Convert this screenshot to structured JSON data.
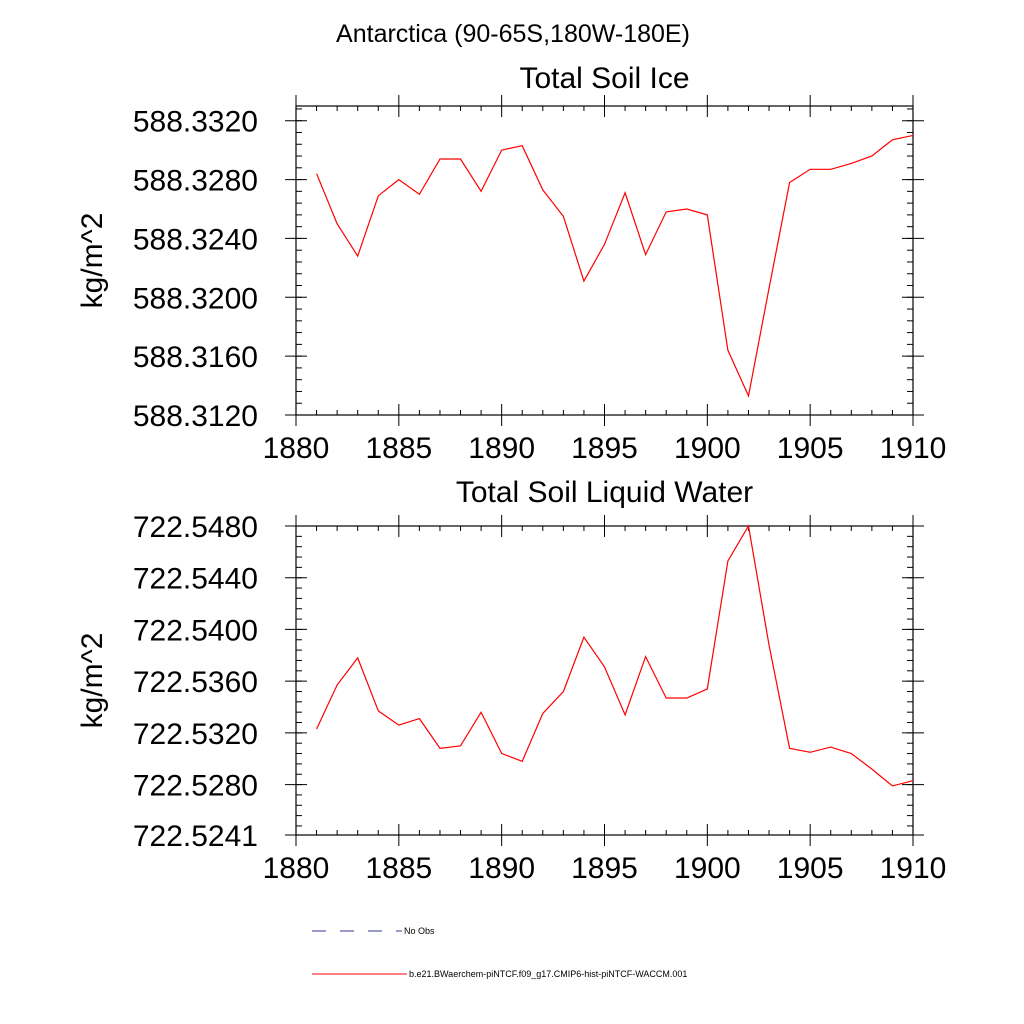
{
  "figure": {
    "title": "Antarctica (90-65S,180W-180E)"
  },
  "chart_data": [
    {
      "type": "line",
      "title": "Total Soil Ice",
      "xlabel": "",
      "ylabel": "kg/m^2",
      "xlim": [
        1880,
        1910
      ],
      "ylim": [
        588.312,
        588.333
      ],
      "xticks": [
        1880,
        1885,
        1890,
        1895,
        1900,
        1905,
        1910
      ],
      "xtick_labels": [
        "1880",
        "1885",
        "1890",
        "1895",
        "1900",
        "1905",
        "1910"
      ],
      "yticks": [
        588.312,
        588.316,
        588.32,
        588.324,
        588.328,
        588.332
      ],
      "ytick_labels": [
        "588.3120",
        "588.3160",
        "588.3200",
        "588.3240",
        "588.3280",
        "588.3320"
      ],
      "grid": false,
      "series": [
        {
          "name": "b.e21.BWaerchem-piNTCF.f09_g17.CMIP6-hist-piNTCF-WACCM.001",
          "color": "#ff0000",
          "x": [
            1881,
            1882,
            1883,
            1884,
            1885,
            1886,
            1887,
            1888,
            1889,
            1890,
            1891,
            1892,
            1893,
            1894,
            1895,
            1896,
            1897,
            1898,
            1899,
            1900,
            1901,
            1902,
            1903,
            1904,
            1905,
            1906,
            1907,
            1908,
            1909,
            1910
          ],
          "y": [
            588.3284,
            588.325,
            588.3228,
            588.3269,
            588.328,
            588.327,
            588.3294,
            588.3294,
            588.3272,
            588.33,
            588.3303,
            588.3273,
            588.3255,
            588.3211,
            588.3236,
            588.3271,
            588.3229,
            588.3258,
            588.326,
            588.3256,
            588.3164,
            588.3133,
            588.3206,
            588.3278,
            588.3287,
            588.3287,
            588.3291,
            588.3296,
            588.3307,
            588.331
          ]
        }
      ]
    },
    {
      "type": "line",
      "title": "Total Soil Liquid Water",
      "xlabel": "",
      "ylabel": "kg/m^2",
      "xlim": [
        1880,
        1910
      ],
      "ylim": [
        722.5241,
        722.548
      ],
      "xticks": [
        1880,
        1885,
        1890,
        1895,
        1900,
        1905,
        1910
      ],
      "xtick_labels": [
        "1880",
        "1885",
        "1890",
        "1895",
        "1900",
        "1905",
        "1910"
      ],
      "yticks": [
        722.5241,
        722.528,
        722.532,
        722.536,
        722.54,
        722.544,
        722.548
      ],
      "ytick_labels": [
        "722.5241",
        "722.5280",
        "722.5320",
        "722.5360",
        "722.5400",
        "722.5440",
        "722.5480"
      ],
      "grid": false,
      "series": [
        {
          "name": "b.e21.BWaerchem-piNTCF.f09_g17.CMIP6-hist-piNTCF-WACCM.001",
          "color": "#ff0000",
          "x": [
            1881,
            1882,
            1883,
            1884,
            1885,
            1886,
            1887,
            1888,
            1889,
            1890,
            1891,
            1892,
            1893,
            1894,
            1895,
            1896,
            1897,
            1898,
            1899,
            1900,
            1901,
            1902,
            1903,
            1904,
            1905,
            1906,
            1907,
            1908,
            1909,
            1910
          ],
          "y": [
            722.5323,
            722.5357,
            722.5378,
            722.5337,
            722.5326,
            722.5331,
            722.5308,
            722.531,
            722.5336,
            722.5304,
            722.5298,
            722.5335,
            722.5352,
            722.5394,
            722.5371,
            722.5334,
            722.5379,
            722.5347,
            722.5347,
            722.5354,
            722.5453,
            722.548,
            722.5388,
            722.5308,
            722.5305,
            722.5309,
            722.5304,
            722.5292,
            722.5279,
            722.5283
          ]
        }
      ]
    }
  ],
  "legend": {
    "placement": "bottom-left",
    "items": [
      {
        "label": "No Obs",
        "color": "#333399",
        "style": "dashed"
      },
      {
        "label": "b.e21.BWaerchem-piNTCF.f09_g17.CMIP6-hist-piNTCF-WACCM.001",
        "color": "#ff0000",
        "style": "solid"
      }
    ]
  }
}
